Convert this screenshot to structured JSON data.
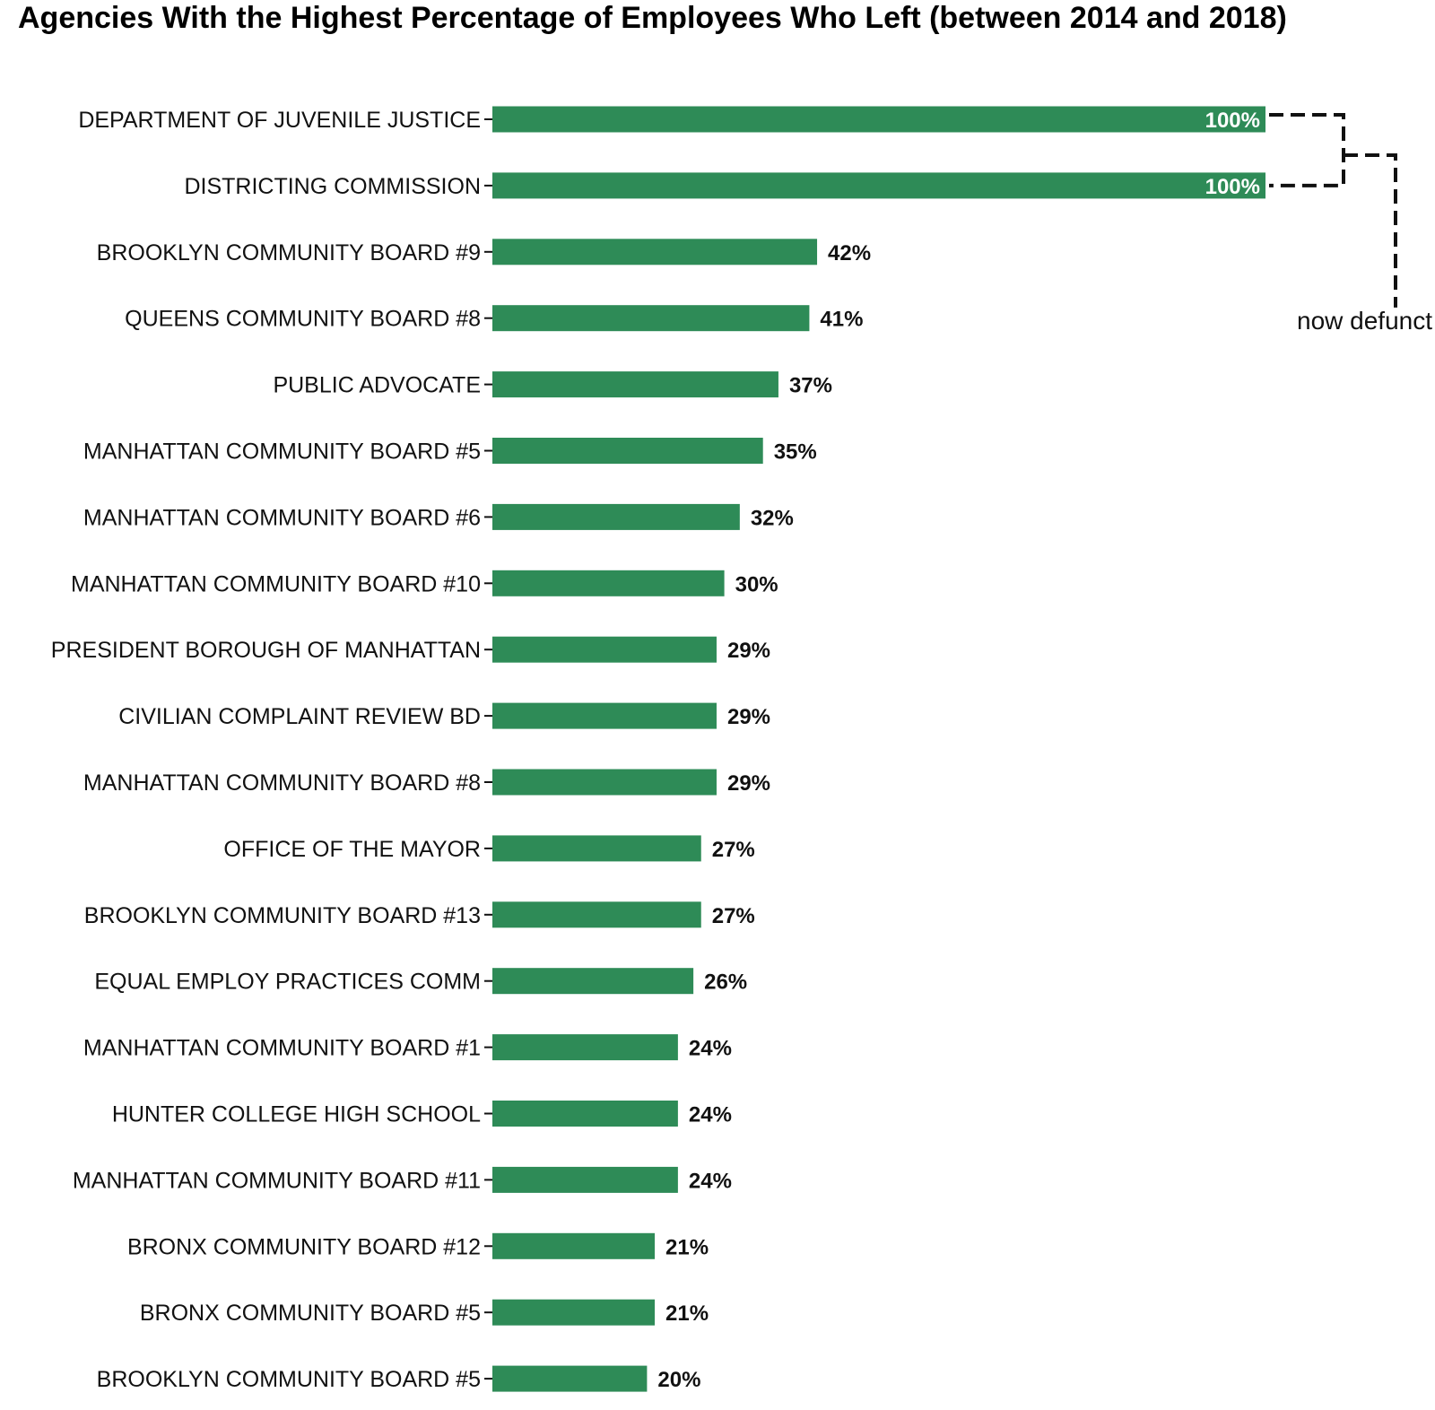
{
  "chart_data": {
    "type": "bar",
    "orientation": "horizontal",
    "title": "Agencies With the Highest Percentage of Employees Who Left (between 2014 and 2018)",
    "xlabel": "",
    "ylabel": "",
    "xlim": [
      0,
      100
    ],
    "grid": false,
    "legend": "none",
    "bar_color": "#2e8b57",
    "categories": [
      "DEPARTMENT OF JUVENILE JUSTICE",
      "DISTRICTING COMMISSION",
      "BROOKLYN COMMUNITY BOARD #9",
      "QUEENS COMMUNITY BOARD #8",
      "PUBLIC ADVOCATE",
      "MANHATTAN COMMUNITY BOARD #5",
      "MANHATTAN COMMUNITY BOARD #6",
      "MANHATTAN COMMUNITY BOARD #10",
      "PRESIDENT BOROUGH OF MANHATTAN",
      "CIVILIAN COMPLAINT REVIEW BD",
      "MANHATTAN COMMUNITY BOARD #8",
      "OFFICE OF THE MAYOR",
      "BROOKLYN COMMUNITY BOARD #13",
      "EQUAL EMPLOY PRACTICES COMM",
      "MANHATTAN COMMUNITY BOARD #1",
      "HUNTER COLLEGE HIGH SCHOOL",
      "MANHATTAN COMMUNITY BOARD #11",
      "BRONX COMMUNITY BOARD #12",
      "BRONX COMMUNITY BOARD #5",
      "BROOKLYN COMMUNITY BOARD #5"
    ],
    "values": [
      100,
      100,
      42,
      41,
      37,
      35,
      32,
      30,
      29,
      29,
      29,
      27,
      27,
      26,
      24,
      24,
      24,
      21,
      21,
      20
    ],
    "value_labels": [
      "100%",
      "100%",
      "42%",
      "41%",
      "37%",
      "35%",
      "32%",
      "30%",
      "29%",
      "29%",
      "29%",
      "27%",
      "27%",
      "26%",
      "24%",
      "24%",
      "24%",
      "21%",
      "21%",
      "20%"
    ],
    "annotations": [
      {
        "text": "now defunct",
        "applies_to": [
          "DEPARTMENT OF JUVENILE JUSTICE",
          "DISTRICTING COMMISSION"
        ]
      }
    ]
  }
}
